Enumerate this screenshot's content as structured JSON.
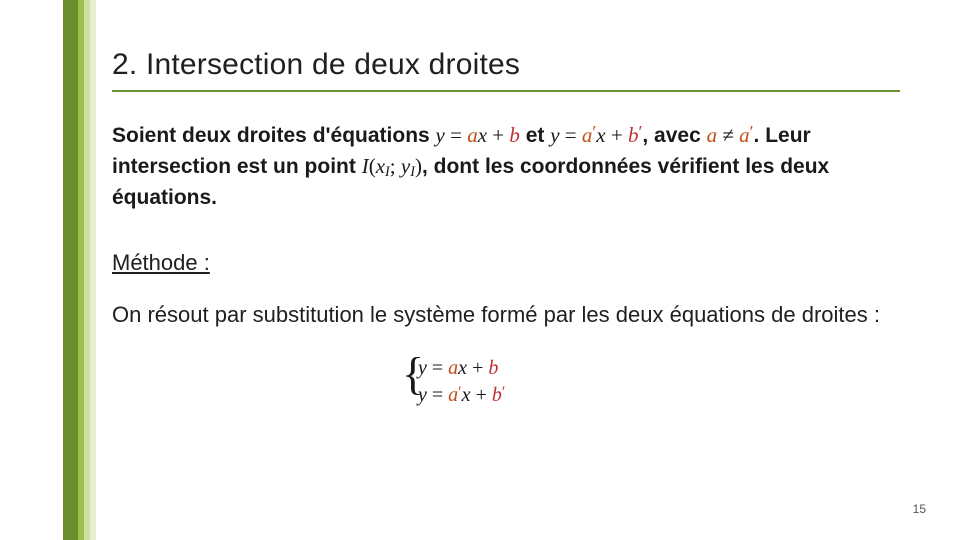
{
  "stripe_colors": [
    "#6a8f2f",
    "#9bbf4c",
    "#cde0a2",
    "#e8f0d3"
  ],
  "heading": "2. Intersection de deux droites",
  "paragraph": {
    "t1": "Soient deux droites d'équations ",
    "eq1": {
      "y": "y",
      "eq": " = ",
      "a": "a",
      "x": "x",
      "plus": " + ",
      "b": "b"
    },
    "t2": " et ",
    "eq2": {
      "y": "y",
      "eq": " = ",
      "a": "a",
      "prime": "′",
      "x": "x",
      "plus": " + ",
      "b": "b"
    },
    "t3": ", avec ",
    "neq": {
      "a": "a",
      "ne": " ≠ ",
      "a2": "a",
      "prime": "′"
    },
    "t4": ". Leur intersection est un point ",
    "pt": {
      "I": "I",
      "open": "(",
      "x": "x",
      "sub1": "I",
      "sep": "; ",
      "y": "y",
      "sub2": "I",
      "close": ")"
    },
    "t5": ", dont les coordonnées vérifient les deux équations."
  },
  "methode_label": "Méthode :",
  "body_text": "On résout par substitution le système formé par les deux équations de droites :",
  "system": {
    "row1": {
      "y": "y",
      "eq": " = ",
      "a": "a",
      "x": "x",
      "plus": " + ",
      "b": "b"
    },
    "row2": {
      "y": "y",
      "eq": " = ",
      "a": "a",
      "prime": "′",
      "x": "x",
      "plus": " + ",
      "b": "b",
      "prime2": "′"
    }
  },
  "page_number": "15",
  "colors": {
    "heading_underline": "#6a8f2f",
    "coef_a": "#c05018",
    "coef_b": "#c03030",
    "text": "#1a1a1a"
  }
}
